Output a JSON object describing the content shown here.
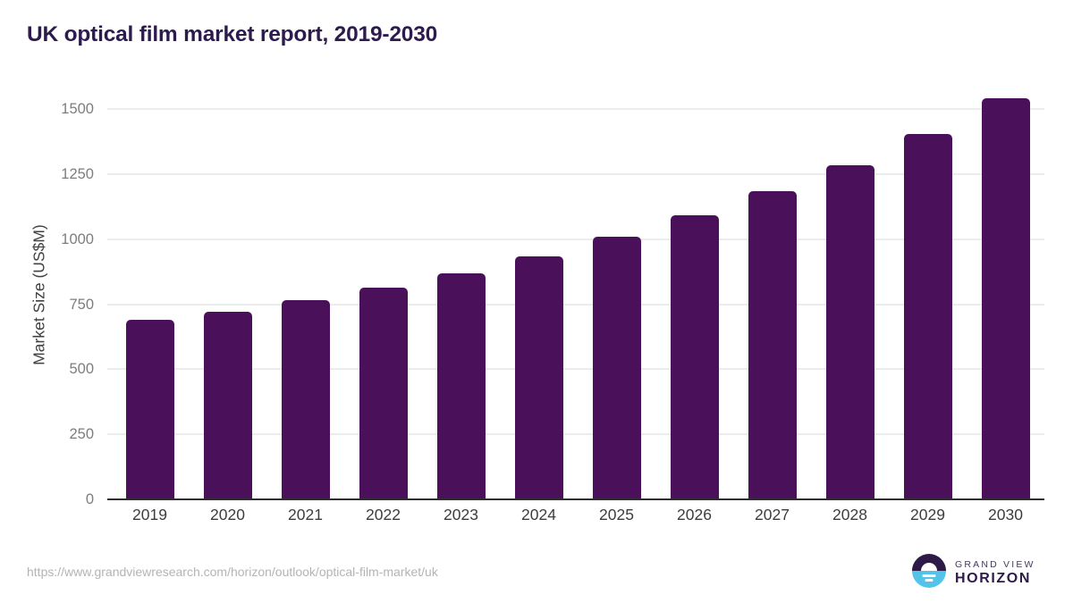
{
  "chart_data": {
    "type": "bar",
    "title": "UK optical film market report, 2019-2030",
    "categories": [
      "2019",
      "2020",
      "2021",
      "2022",
      "2023",
      "2024",
      "2025",
      "2026",
      "2027",
      "2028",
      "2029",
      "2030"
    ],
    "values": [
      690,
      720,
      765,
      815,
      870,
      935,
      1010,
      1090,
      1185,
      1285,
      1405,
      1540
    ],
    "xlabel": "",
    "ylabel": "Market Size (US$M)",
    "ylim": [
      0,
      1550
    ],
    "yticks": [
      0,
      250,
      500,
      750,
      1000,
      1250,
      1500
    ],
    "grid": true,
    "legend": "none",
    "bar_color": "#4a105a"
  },
  "footer": {
    "url": "https://www.grandviewresearch.com/horizon/outlook/optical-film-market/uk",
    "logo": {
      "line1": "GRAND VIEW",
      "line2": "HORIZON"
    }
  }
}
